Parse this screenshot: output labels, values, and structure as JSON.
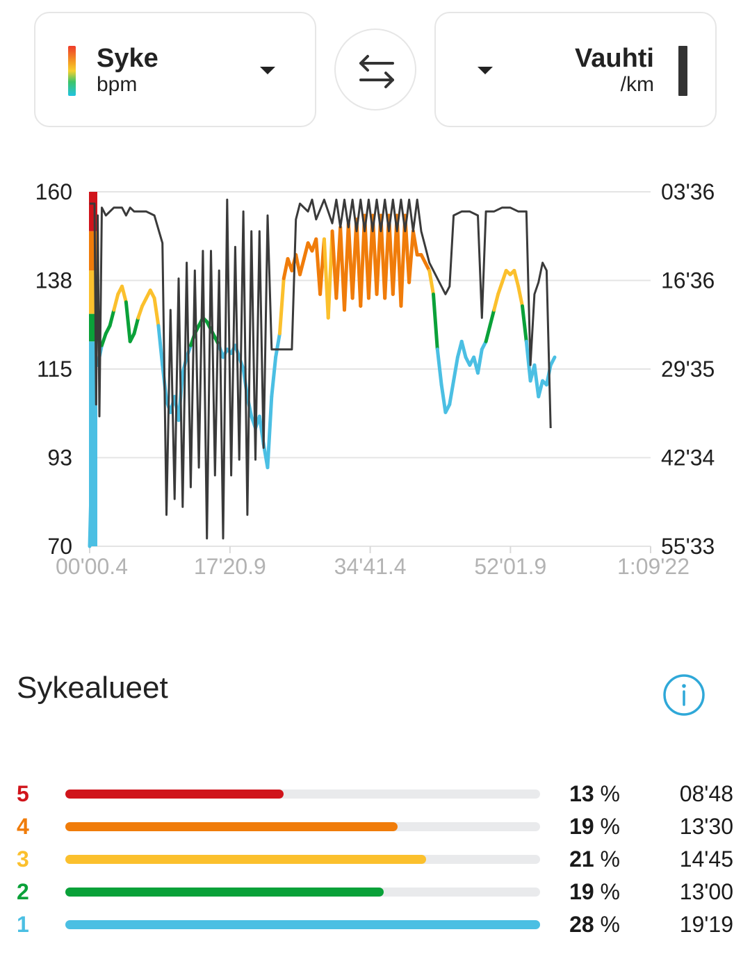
{
  "left_selector": {
    "title": "Syke",
    "unit": "bpm"
  },
  "right_selector": {
    "title": "Vauhti",
    "unit": "/km"
  },
  "swap_icon": "swap-arrows-icon",
  "chart_data": {
    "type": "line",
    "y_left": {
      "ticks": [
        "160",
        "138",
        "115",
        "93",
        "70"
      ],
      "range": [
        70,
        160
      ]
    },
    "y_right": {
      "ticks": [
        "03'36",
        "16'36",
        "29'35",
        "42'34",
        "55'33"
      ]
    },
    "x": {
      "ticks": [
        "00'00.4",
        "17'20.9",
        "34'41.4",
        "52'01.9",
        "1:09'22"
      ]
    },
    "grid": true,
    "series": [
      {
        "color_by_zone": true,
        "points": [
          [
            0.0,
            70
          ],
          [
            0.2,
            86
          ],
          [
            0.4,
            108
          ],
          [
            0.6,
            118
          ],
          [
            1.0,
            116
          ],
          [
            1.5,
            121
          ],
          [
            2.0,
            124
          ],
          [
            2.5,
            126
          ],
          [
            3.0,
            130
          ],
          [
            3.5,
            134
          ],
          [
            4.0,
            136
          ],
          [
            4.5,
            132
          ],
          [
            5.0,
            122
          ],
          [
            5.5,
            124
          ],
          [
            6.0,
            128
          ],
          [
            6.5,
            131
          ],
          [
            7.0,
            133
          ],
          [
            7.5,
            135
          ],
          [
            8.0,
            133
          ],
          [
            8.5,
            126
          ],
          [
            9.0,
            116
          ],
          [
            9.5,
            107
          ],
          [
            10.0,
            104
          ],
          [
            10.5,
            108
          ],
          [
            11.0,
            102
          ],
          [
            11.5,
            114
          ],
          [
            12.0,
            118
          ],
          [
            12.5,
            121
          ],
          [
            13.0,
            124
          ],
          [
            13.5,
            126
          ],
          [
            14.0,
            128
          ],
          [
            14.5,
            127
          ],
          [
            15.0,
            125
          ],
          [
            15.5,
            123
          ],
          [
            16.0,
            121
          ],
          [
            16.5,
            118
          ],
          [
            17.0,
            120
          ],
          [
            17.5,
            119
          ],
          [
            18.0,
            121
          ],
          [
            18.5,
            118
          ],
          [
            19.0,
            115
          ],
          [
            19.5,
            108
          ],
          [
            20.0,
            103
          ],
          [
            20.5,
            100
          ],
          [
            21.0,
            103
          ],
          [
            21.5,
            96
          ],
          [
            22.0,
            90
          ],
          [
            22.5,
            108
          ],
          [
            23.0,
            118
          ],
          [
            23.5,
            124
          ],
          [
            24.0,
            138
          ],
          [
            24.5,
            143
          ],
          [
            25.0,
            140
          ],
          [
            25.5,
            144
          ],
          [
            26.0,
            139
          ],
          [
            26.5,
            143
          ],
          [
            27.0,
            147
          ],
          [
            27.5,
            145
          ],
          [
            28.0,
            148
          ],
          [
            28.5,
            134
          ],
          [
            29.0,
            148
          ],
          [
            29.5,
            128
          ],
          [
            30.0,
            150
          ],
          [
            30.5,
            133
          ],
          [
            31.0,
            151
          ],
          [
            31.5,
            130
          ],
          [
            32.0,
            152
          ],
          [
            32.5,
            133
          ],
          [
            33.0,
            153
          ],
          [
            33.5,
            131
          ],
          [
            34.0,
            154
          ],
          [
            34.5,
            133
          ],
          [
            35.0,
            154
          ],
          [
            35.5,
            134
          ],
          [
            36.0,
            154
          ],
          [
            36.5,
            133
          ],
          [
            37.0,
            154
          ],
          [
            37.5,
            134
          ],
          [
            38.0,
            154
          ],
          [
            38.5,
            131
          ],
          [
            39.0,
            154
          ],
          [
            39.5,
            137
          ],
          [
            40.0,
            150
          ],
          [
            40.5,
            144
          ],
          [
            41.0,
            144
          ],
          [
            41.5,
            142
          ],
          [
            42.0,
            140
          ],
          [
            42.5,
            134
          ],
          [
            43.0,
            120
          ],
          [
            43.5,
            111
          ],
          [
            44.0,
            104
          ],
          [
            44.5,
            106
          ],
          [
            45.0,
            112
          ],
          [
            45.5,
            118
          ],
          [
            46.0,
            122
          ],
          [
            46.5,
            118
          ],
          [
            47.0,
            116
          ],
          [
            47.5,
            118
          ],
          [
            48.0,
            114
          ],
          [
            48.5,
            120
          ],
          [
            49.0,
            122
          ],
          [
            49.5,
            126
          ],
          [
            50.0,
            130
          ],
          [
            50.5,
            134
          ],
          [
            51.0,
            137
          ],
          [
            51.5,
            140
          ],
          [
            52.0,
            139
          ],
          [
            52.5,
            140
          ],
          [
            53.0,
            136
          ],
          [
            53.5,
            131
          ],
          [
            54.0,
            122
          ],
          [
            54.5,
            112
          ],
          [
            55.0,
            116
          ],
          [
            55.5,
            108
          ],
          [
            56.0,
            112
          ],
          [
            56.5,
            111
          ],
          [
            57.0,
            116
          ],
          [
            57.5,
            118
          ]
        ]
      },
      {
        "color": "#3a3a3a",
        "axis": "right",
        "points": [
          [
            0.0,
            157
          ],
          [
            0.6,
            157
          ],
          [
            0.8,
            106
          ],
          [
            1.0,
            154
          ],
          [
            1.2,
            103
          ],
          [
            1.5,
            156
          ],
          [
            2.0,
            154
          ],
          [
            3.0,
            156
          ],
          [
            4.0,
            156
          ],
          [
            4.5,
            154
          ],
          [
            5.0,
            156
          ],
          [
            5.5,
            155
          ],
          [
            6.0,
            155
          ],
          [
            7.0,
            155
          ],
          [
            8.0,
            154
          ],
          [
            9.0,
            147
          ],
          [
            9.5,
            78
          ],
          [
            10.0,
            130
          ],
          [
            10.5,
            82
          ],
          [
            11.0,
            138
          ],
          [
            11.5,
            80
          ],
          [
            12.0,
            142
          ],
          [
            12.5,
            85
          ],
          [
            13.0,
            140
          ],
          [
            13.5,
            90
          ],
          [
            14.0,
            145
          ],
          [
            14.5,
            72
          ],
          [
            15.0,
            145
          ],
          [
            15.5,
            88
          ],
          [
            16.0,
            140
          ],
          [
            16.5,
            72
          ],
          [
            17.0,
            158
          ],
          [
            17.5,
            88
          ],
          [
            18.0,
            146
          ],
          [
            18.5,
            92
          ],
          [
            19.0,
            155
          ],
          [
            19.5,
            78
          ],
          [
            20.0,
            150
          ],
          [
            20.5,
            92
          ],
          [
            21.0,
            150
          ],
          [
            21.5,
            95
          ],
          [
            22.0,
            154
          ],
          [
            22.5,
            120
          ],
          [
            23.0,
            120
          ],
          [
            24.0,
            120
          ],
          [
            25.0,
            120
          ],
          [
            25.5,
            153
          ],
          [
            26.0,
            157
          ],
          [
            27.0,
            155
          ],
          [
            27.5,
            158
          ],
          [
            28.0,
            153
          ],
          [
            29.0,
            158
          ],
          [
            30.0,
            152
          ],
          [
            30.5,
            158
          ],
          [
            31.0,
            151
          ],
          [
            31.5,
            158
          ],
          [
            32.0,
            151
          ],
          [
            32.5,
            158
          ],
          [
            33.0,
            150
          ],
          [
            33.5,
            158
          ],
          [
            34.0,
            150
          ],
          [
            34.5,
            158
          ],
          [
            35.0,
            150
          ],
          [
            35.5,
            158
          ],
          [
            36.0,
            150
          ],
          [
            36.5,
            158
          ],
          [
            37.0,
            150
          ],
          [
            37.5,
            158
          ],
          [
            38.0,
            150
          ],
          [
            38.5,
            158
          ],
          [
            39.0,
            150
          ],
          [
            39.5,
            158
          ],
          [
            40.0,
            150
          ],
          [
            40.5,
            158
          ],
          [
            41.0,
            150
          ],
          [
            41.5,
            146
          ],
          [
            42.0,
            142
          ],
          [
            42.5,
            140
          ],
          [
            43.0,
            138
          ],
          [
            43.5,
            136
          ],
          [
            44.0,
            134
          ],
          [
            44.5,
            136
          ],
          [
            45.0,
            154
          ],
          [
            46.0,
            155
          ],
          [
            47.0,
            155
          ],
          [
            48.0,
            154
          ],
          [
            48.5,
            128
          ],
          [
            49.0,
            155
          ],
          [
            50.0,
            155
          ],
          [
            51.0,
            156
          ],
          [
            52.0,
            156
          ],
          [
            53.0,
            155
          ],
          [
            54.0,
            155
          ],
          [
            54.5,
            116
          ],
          [
            55.0,
            134
          ],
          [
            55.5,
            137
          ],
          [
            56.0,
            142
          ],
          [
            56.5,
            140
          ],
          [
            57.0,
            100
          ]
        ]
      }
    ]
  },
  "zones": {
    "title": "Sykealueet",
    "info_icon": "info-icon",
    "items": [
      {
        "zone": "5",
        "percent": "13",
        "unit": "%",
        "time": "08'48",
        "fill": 0.46,
        "color": "#d0141b"
      },
      {
        "zone": "4",
        "percent": "19",
        "unit": "%",
        "time": "13'30",
        "fill": 0.7,
        "color": "#f07c0a"
      },
      {
        "zone": "3",
        "percent": "21",
        "unit": "%",
        "time": "14'45",
        "fill": 0.76,
        "color": "#fbc02d"
      },
      {
        "zone": "2",
        "percent": "19",
        "unit": "%",
        "time": "13'00",
        "fill": 0.67,
        "color": "#0aa139"
      },
      {
        "zone": "1",
        "percent": "28",
        "unit": "%",
        "time": "19'19",
        "fill": 1.0,
        "color": "#4bbfe3"
      }
    ]
  }
}
